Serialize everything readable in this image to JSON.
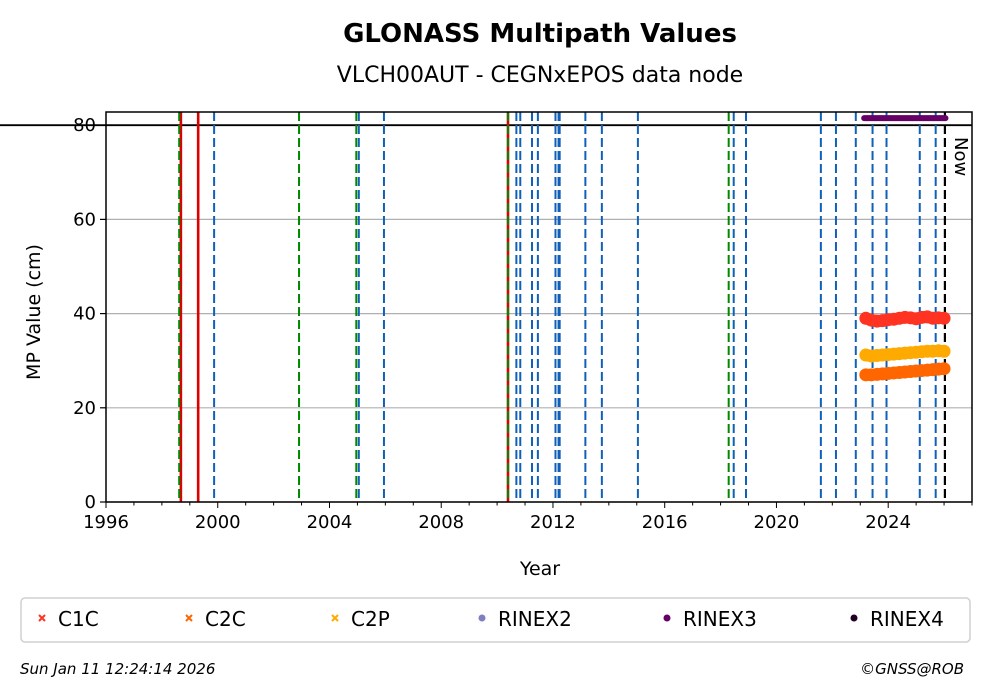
{
  "chart_data": {
    "type": "scatter",
    "title": "GLONASS Multipath Values",
    "subtitle": "VLCH00AUT - CEGNxEPOS data node",
    "xlabel": "Year",
    "ylabel": "MP Value (cm)",
    "xlim": [
      1996,
      2027
    ],
    "ylim": [
      0,
      82.8
    ],
    "xticks": [
      1996,
      2000,
      2004,
      2008,
      2012,
      2016,
      2020,
      2024
    ],
    "yticks": [
      0,
      20,
      40,
      60,
      80
    ],
    "grid": "y",
    "reference_line": 80,
    "now_label": "Now",
    "now_x": 2026.03,
    "series": [
      {
        "name": "C1C",
        "color": "#ff3322",
        "marker": "x",
        "x": [
          2023.2,
          2023.4,
          2023.6,
          2023.8,
          2024.0,
          2024.2,
          2024.4,
          2024.6,
          2024.8,
          2025.0,
          2025.2,
          2025.4,
          2025.6,
          2025.8,
          2026.0
        ],
        "y": [
          39.0,
          38.6,
          38.4,
          38.5,
          38.7,
          38.8,
          39.0,
          39.2,
          39.1,
          38.9,
          39.2,
          39.3,
          39.0,
          39.1,
          39.0
        ]
      },
      {
        "name": "C2C",
        "color": "#ff6600",
        "marker": "x",
        "x": [
          2023.2,
          2023.4,
          2023.6,
          2023.8,
          2024.0,
          2024.2,
          2024.4,
          2024.6,
          2024.8,
          2025.0,
          2025.2,
          2025.4,
          2025.6,
          2025.8,
          2026.0
        ],
        "y": [
          27.0,
          27.0,
          27.1,
          27.2,
          27.3,
          27.4,
          27.5,
          27.6,
          27.7,
          27.8,
          27.9,
          28.0,
          28.1,
          28.2,
          28.3
        ]
      },
      {
        "name": "C2P",
        "color": "#ffaa00",
        "marker": "x",
        "x": [
          2023.2,
          2023.4,
          2023.6,
          2023.8,
          2024.0,
          2024.2,
          2024.4,
          2024.6,
          2024.8,
          2025.0,
          2025.2,
          2025.4,
          2025.6,
          2025.8,
          2026.0
        ],
        "y": [
          31.2,
          31.0,
          31.1,
          31.2,
          31.3,
          31.4,
          31.5,
          31.6,
          31.7,
          31.8,
          31.9,
          32.0,
          32.0,
          32.1,
          32.0
        ]
      },
      {
        "name": "RINEX2",
        "color": "#7f7fbf",
        "marker": "o",
        "x": [],
        "y": []
      },
      {
        "name": "RINEX3",
        "color": "#660066",
        "marker": "o",
        "x": [
          2023.14,
          2026.05
        ],
        "y": [
          81.5,
          81.5
        ]
      },
      {
        "name": "RINEX4",
        "color": "#220022",
        "marker": "o",
        "x": [],
        "y": []
      }
    ],
    "events": {
      "red_solid": {
        "color": "#dd0000",
        "x": [
          1998.68,
          1999.3,
          2010.39
        ]
      },
      "green_dashed": {
        "color": "#008800",
        "x": [
          1998.62,
          2002.91,
          2004.96,
          2010.39,
          2018.29
        ]
      },
      "blue_dashed": {
        "color": "#1060b8",
        "x": [
          1999.87,
          2005.05,
          2005.95,
          2010.69,
          2010.83,
          2011.25,
          2011.46,
          2012.09,
          2012.2,
          2012.24,
          2013.16,
          2013.75,
          2015.04,
          2018.47,
          2018.91,
          2021.59,
          2022.13,
          2022.84,
          2023.44,
          2023.94,
          2025.13,
          2025.7
        ]
      },
      "now_dashed": {
        "color": "#000000",
        "x": [
          2026.03
        ]
      }
    },
    "legend_position": "bottom"
  },
  "footer": {
    "timestamp": "Sun Jan 11 12:24:14 2026",
    "credit": "©GNSS@ROB"
  }
}
